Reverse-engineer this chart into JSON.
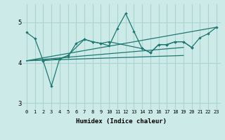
{
  "color": "#1f7872",
  "bg_color": "#cceae8",
  "grid_color": "#aad4d0",
  "xlabel": "Humidex (Indice chaleur)",
  "xlim": [
    -0.5,
    23.5
  ],
  "ylim": [
    2.85,
    5.45
  ],
  "yticks": [
    3,
    4,
    5
  ],
  "xticks": [
    0,
    1,
    2,
    3,
    4,
    5,
    6,
    7,
    8,
    9,
    10,
    11,
    12,
    13,
    14,
    15,
    16,
    17,
    18,
    19,
    20,
    21,
    22,
    23
  ],
  "line1_x": [
    0,
    1,
    2,
    4,
    5,
    6,
    7,
    8,
    9,
    10,
    14,
    15,
    16,
    17,
    18,
    19,
    20
  ],
  "line1_y": [
    4.75,
    4.6,
    4.05,
    4.1,
    4.15,
    4.48,
    4.58,
    4.52,
    4.48,
    4.52,
    4.35,
    4.25,
    4.45,
    4.45,
    4.52,
    4.52,
    4.38
  ],
  "line2_x": [
    2,
    3,
    4,
    5,
    7,
    8,
    9,
    10,
    11,
    12,
    13,
    14,
    15,
    16,
    17,
    18,
    19,
    20,
    21,
    22,
    23
  ],
  "line2_y": [
    4.05,
    3.42,
    4.1,
    4.18,
    4.58,
    4.52,
    4.48,
    4.42,
    4.85,
    5.22,
    4.78,
    4.35,
    4.25,
    4.45,
    4.45,
    4.52,
    4.52,
    4.38,
    4.62,
    4.72,
    4.88
  ],
  "straight_lines": [
    {
      "x0": 0,
      "y0": 4.05,
      "x1": 23,
      "y1": 4.88
    },
    {
      "x0": 0,
      "y0": 4.05,
      "x1": 19,
      "y1": 4.38
    },
    {
      "x0": 0,
      "y0": 4.05,
      "x1": 19,
      "y1": 4.18
    }
  ]
}
